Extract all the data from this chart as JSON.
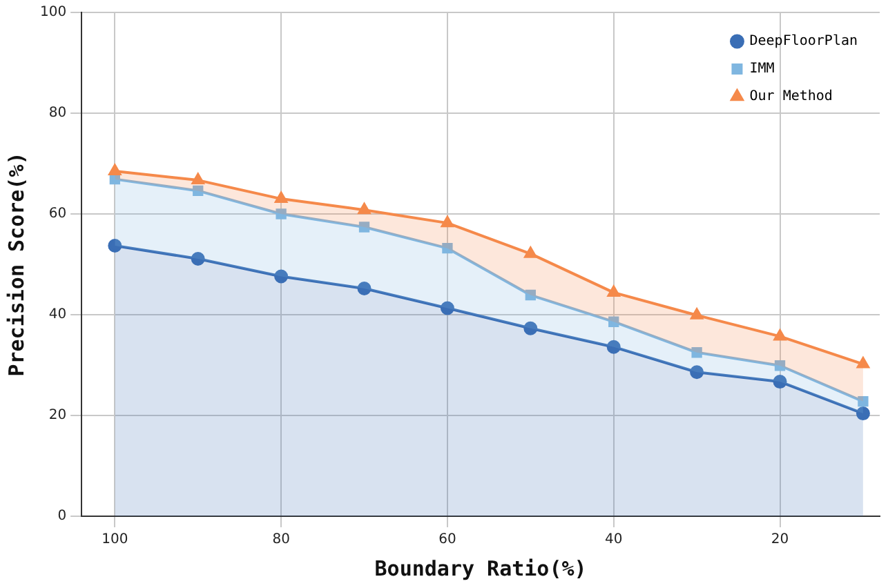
{
  "chart_data": {
    "type": "area",
    "xlabel": "Boundary Ratio(%)",
    "ylabel": "Precision Score(%)",
    "x": [
      100,
      90,
      80,
      70,
      60,
      50,
      40,
      30,
      20,
      10
    ],
    "xlim": [
      104,
      8
    ],
    "xticks": [
      100,
      80,
      60,
      40,
      20
    ],
    "ylim": [
      0,
      100
    ],
    "yticks": [
      0,
      20,
      40,
      60,
      80,
      100
    ],
    "grid": true,
    "legend": "top right",
    "series": [
      {
        "name": "DeepFloorPlan",
        "color": "#3a6eb5",
        "marker": "circle",
        "values": [
          53.7,
          51.1,
          47.6,
          45.2,
          41.3,
          37.3,
          33.6,
          28.6,
          26.7,
          20.4
        ]
      },
      {
        "name": "IMM",
        "color": "#7fb6e0",
        "marker": "square",
        "values": [
          66.9,
          64.6,
          60.0,
          57.4,
          53.2,
          43.9,
          38.6,
          32.5,
          29.9,
          22.8
        ]
      },
      {
        "name": "Our Method",
        "color": "#f5894a",
        "marker": "triangle",
        "values": [
          68.5,
          66.7,
          63.0,
          60.8,
          58.2,
          52.1,
          44.4,
          39.9,
          35.7,
          30.2
        ]
      }
    ]
  }
}
